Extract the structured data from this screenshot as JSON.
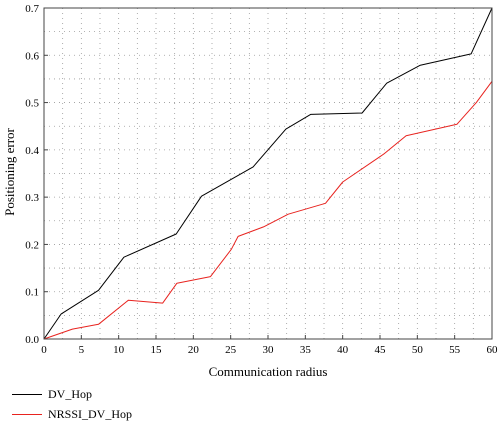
{
  "chart_data": {
    "type": "line",
    "xlabel": "Communication radius",
    "ylabel": "Positioning error",
    "xlim": [
      0,
      60
    ],
    "ylim": [
      0,
      0.7
    ],
    "x_ticks": [
      "0",
      "5",
      "10",
      "15",
      "20",
      "25",
      "30",
      "35",
      "40",
      "45",
      "50",
      "55",
      "60"
    ],
    "y_ticks": [
      "0.0",
      "0.1",
      "0.2",
      "0.3",
      "0.4",
      "0.5",
      "0.6",
      "0.7"
    ],
    "grid": "dotted",
    "legend_position": "bottom-left",
    "series": [
      {
        "name": "DV_Hop",
        "color": "#000000",
        "x": [
          0,
          2.3,
          7.3,
          10.7,
          17.7,
          21.1,
          28.0,
          32.4,
          35.7,
          42.6,
          45.9,
          50.4,
          57.2,
          60
        ],
        "y": [
          0,
          0.053,
          0.103,
          0.173,
          0.222,
          0.302,
          0.364,
          0.444,
          0.475,
          0.478,
          0.541,
          0.579,
          0.603,
          0.7
        ]
      },
      {
        "name": "NRSSI_DV_Hop",
        "color": "#e8231f",
        "x": [
          0,
          3.8,
          7.3,
          11.3,
          15.9,
          17.8,
          22.3,
          25.1,
          26.0,
          29.4,
          32.7,
          37.7,
          40.0,
          45.5,
          48.5,
          55.3,
          57.9,
          60
        ],
        "y": [
          0,
          0.021,
          0.031,
          0.082,
          0.076,
          0.118,
          0.132,
          0.19,
          0.217,
          0.237,
          0.264,
          0.287,
          0.332,
          0.391,
          0.43,
          0.454,
          0.5,
          0.545
        ]
      }
    ]
  }
}
